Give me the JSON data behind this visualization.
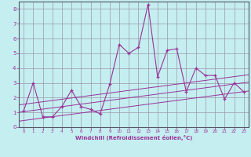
{
  "xlabel": "Windchill (Refroidissement éolien,°C)",
  "bg_color": "#c5eef0",
  "grid_color": "#9999aa",
  "line_color": "#993399",
  "x_data": [
    0,
    1,
    2,
    3,
    4,
    5,
    6,
    7,
    8,
    9,
    10,
    11,
    12,
    13,
    14,
    15,
    16,
    17,
    18,
    19,
    20,
    21,
    22,
    23
  ],
  "y_data": [
    1.1,
    3.0,
    0.7,
    0.7,
    1.4,
    2.5,
    1.4,
    1.2,
    0.9,
    2.9,
    5.6,
    5.0,
    5.4,
    8.3,
    3.4,
    5.2,
    5.3,
    2.4,
    4.0,
    3.5,
    3.5,
    1.9,
    3.0,
    2.4
  ],
  "xlim": [
    -0.5,
    23.5
  ],
  "ylim": [
    0,
    8.5
  ],
  "xticks": [
    0,
    1,
    2,
    3,
    4,
    5,
    6,
    7,
    8,
    9,
    10,
    11,
    12,
    13,
    14,
    15,
    16,
    17,
    18,
    19,
    20,
    21,
    22,
    23
  ],
  "yticks": [
    0,
    1,
    2,
    3,
    4,
    5,
    6,
    7,
    8
  ],
  "reg_intercepts": [
    1.05,
    0.45,
    1.55
  ],
  "reg_slope": 0.085
}
